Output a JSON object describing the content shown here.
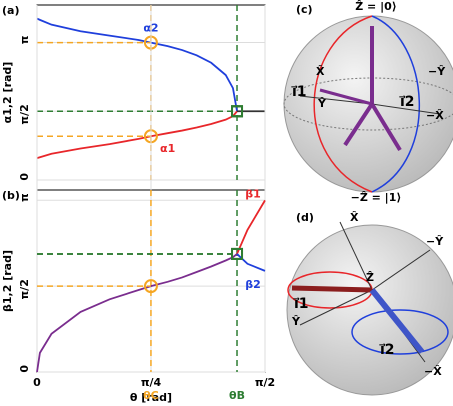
{
  "chart_data": [
    {
      "type": "line",
      "panel_label": "(a)",
      "ylabel": "α1,2 [rad]",
      "x": [
        0,
        0.02,
        0.1,
        0.3,
        0.5,
        0.7,
        0.785,
        0.9,
        1.0,
        1.1,
        1.2,
        1.3,
        1.35,
        1.378,
        1.45,
        1.5708
      ],
      "xlim": [
        0,
        1.5708
      ],
      "ylim": [
        0,
        4.0
      ],
      "yticks": [
        0,
        {
          "value": 1.5708,
          "label": "π/2"
        },
        {
          "value": 3.1416,
          "label": "π"
        }
      ],
      "grid": true,
      "series": [
        {
          "name": "α2",
          "color": "#1f3fdc",
          "values": [
            3.69,
            3.66,
            3.55,
            3.4,
            3.3,
            3.2,
            3.14,
            3.06,
            2.97,
            2.85,
            2.68,
            2.4,
            2.1,
            1.571,
            null,
            null
          ]
        },
        {
          "name": "α1",
          "color": "#e8262a",
          "values": [
            0.5,
            0.52,
            0.6,
            0.72,
            0.82,
            0.94,
            1.0,
            1.07,
            1.13,
            1.2,
            1.28,
            1.38,
            1.46,
            1.571,
            null,
            null
          ]
        },
        {
          "color": "#333333",
          "values": [
            null,
            null,
            null,
            null,
            null,
            null,
            null,
            null,
            null,
            null,
            null,
            null,
            null,
            1.571,
            1.571,
            1.571
          ]
        }
      ],
      "vlines": [
        {
          "x": 0.785,
          "color": "#f5a623",
          "marker": "circle"
        },
        {
          "x": 1.378,
          "color": "#2e7d32",
          "marker": "square"
        }
      ]
    },
    {
      "type": "line",
      "panel_label": "(b)",
      "ylabel": "β1,2 [rad]",
      "xlabel": "θ [rad]",
      "x": [
        0,
        0.02,
        0.1,
        0.3,
        0.5,
        0.7,
        0.785,
        0.9,
        1.0,
        1.1,
        1.2,
        1.3,
        1.35,
        1.378,
        1.45,
        1.5708
      ],
      "xlim": [
        0,
        1.5708
      ],
      "ylim": [
        0,
        3.33
      ],
      "xticks": [
        0,
        {
          "value": 0.7854,
          "label": "π/4"
        },
        {
          "value": 1.5708,
          "label": "π/2"
        }
      ],
      "yticks": [
        0,
        {
          "value": 1.5708,
          "label": "π/2"
        },
        {
          "value": 3.1416,
          "label": "π"
        }
      ],
      "grid": true,
      "series": [
        {
          "color": "#7a2d8e",
          "values": [
            0,
            0.35,
            0.7,
            1.1,
            1.33,
            1.5,
            1.571,
            1.65,
            1.73,
            1.83,
            1.93,
            2.04,
            2.1,
            2.16,
            null,
            null
          ]
        },
        {
          "name": "β1",
          "color": "#e8262a",
          "values": [
            null,
            null,
            null,
            null,
            null,
            null,
            null,
            null,
            null,
            null,
            null,
            null,
            null,
            2.16,
            2.6,
            3.14
          ]
        },
        {
          "name": "β2",
          "color": "#1f3fdc",
          "values": [
            null,
            null,
            null,
            null,
            null,
            null,
            null,
            null,
            null,
            null,
            null,
            null,
            null,
            2.16,
            1.98,
            1.85
          ]
        }
      ],
      "vlines": [
        {
          "x": 0.785,
          "color": "#f5a623",
          "marker": "circle",
          "label": "θC"
        },
        {
          "x": 1.378,
          "color": "#2e7d32",
          "marker": "square",
          "label": "θB"
        }
      ]
    }
  ],
  "spheres": [
    {
      "panel_label": "(c)",
      "top": "Ẑ = |0⟩",
      "bottom": "−Ẑ = |1⟩",
      "x": "X̂",
      "minus_y": "−Ŷ",
      "minus_x": "−X̂",
      "y": "Ŷ",
      "i1": "i⃗1",
      "i2": "i⃗2"
    },
    {
      "panel_label": "(d)",
      "x": "X̂",
      "minus_y": "−Ŷ",
      "z": "Ẑ",
      "i1": "i⃗1",
      "i2": "i⃗2",
      "y": "Ŷ",
      "minus_x": "−X̂"
    }
  ]
}
